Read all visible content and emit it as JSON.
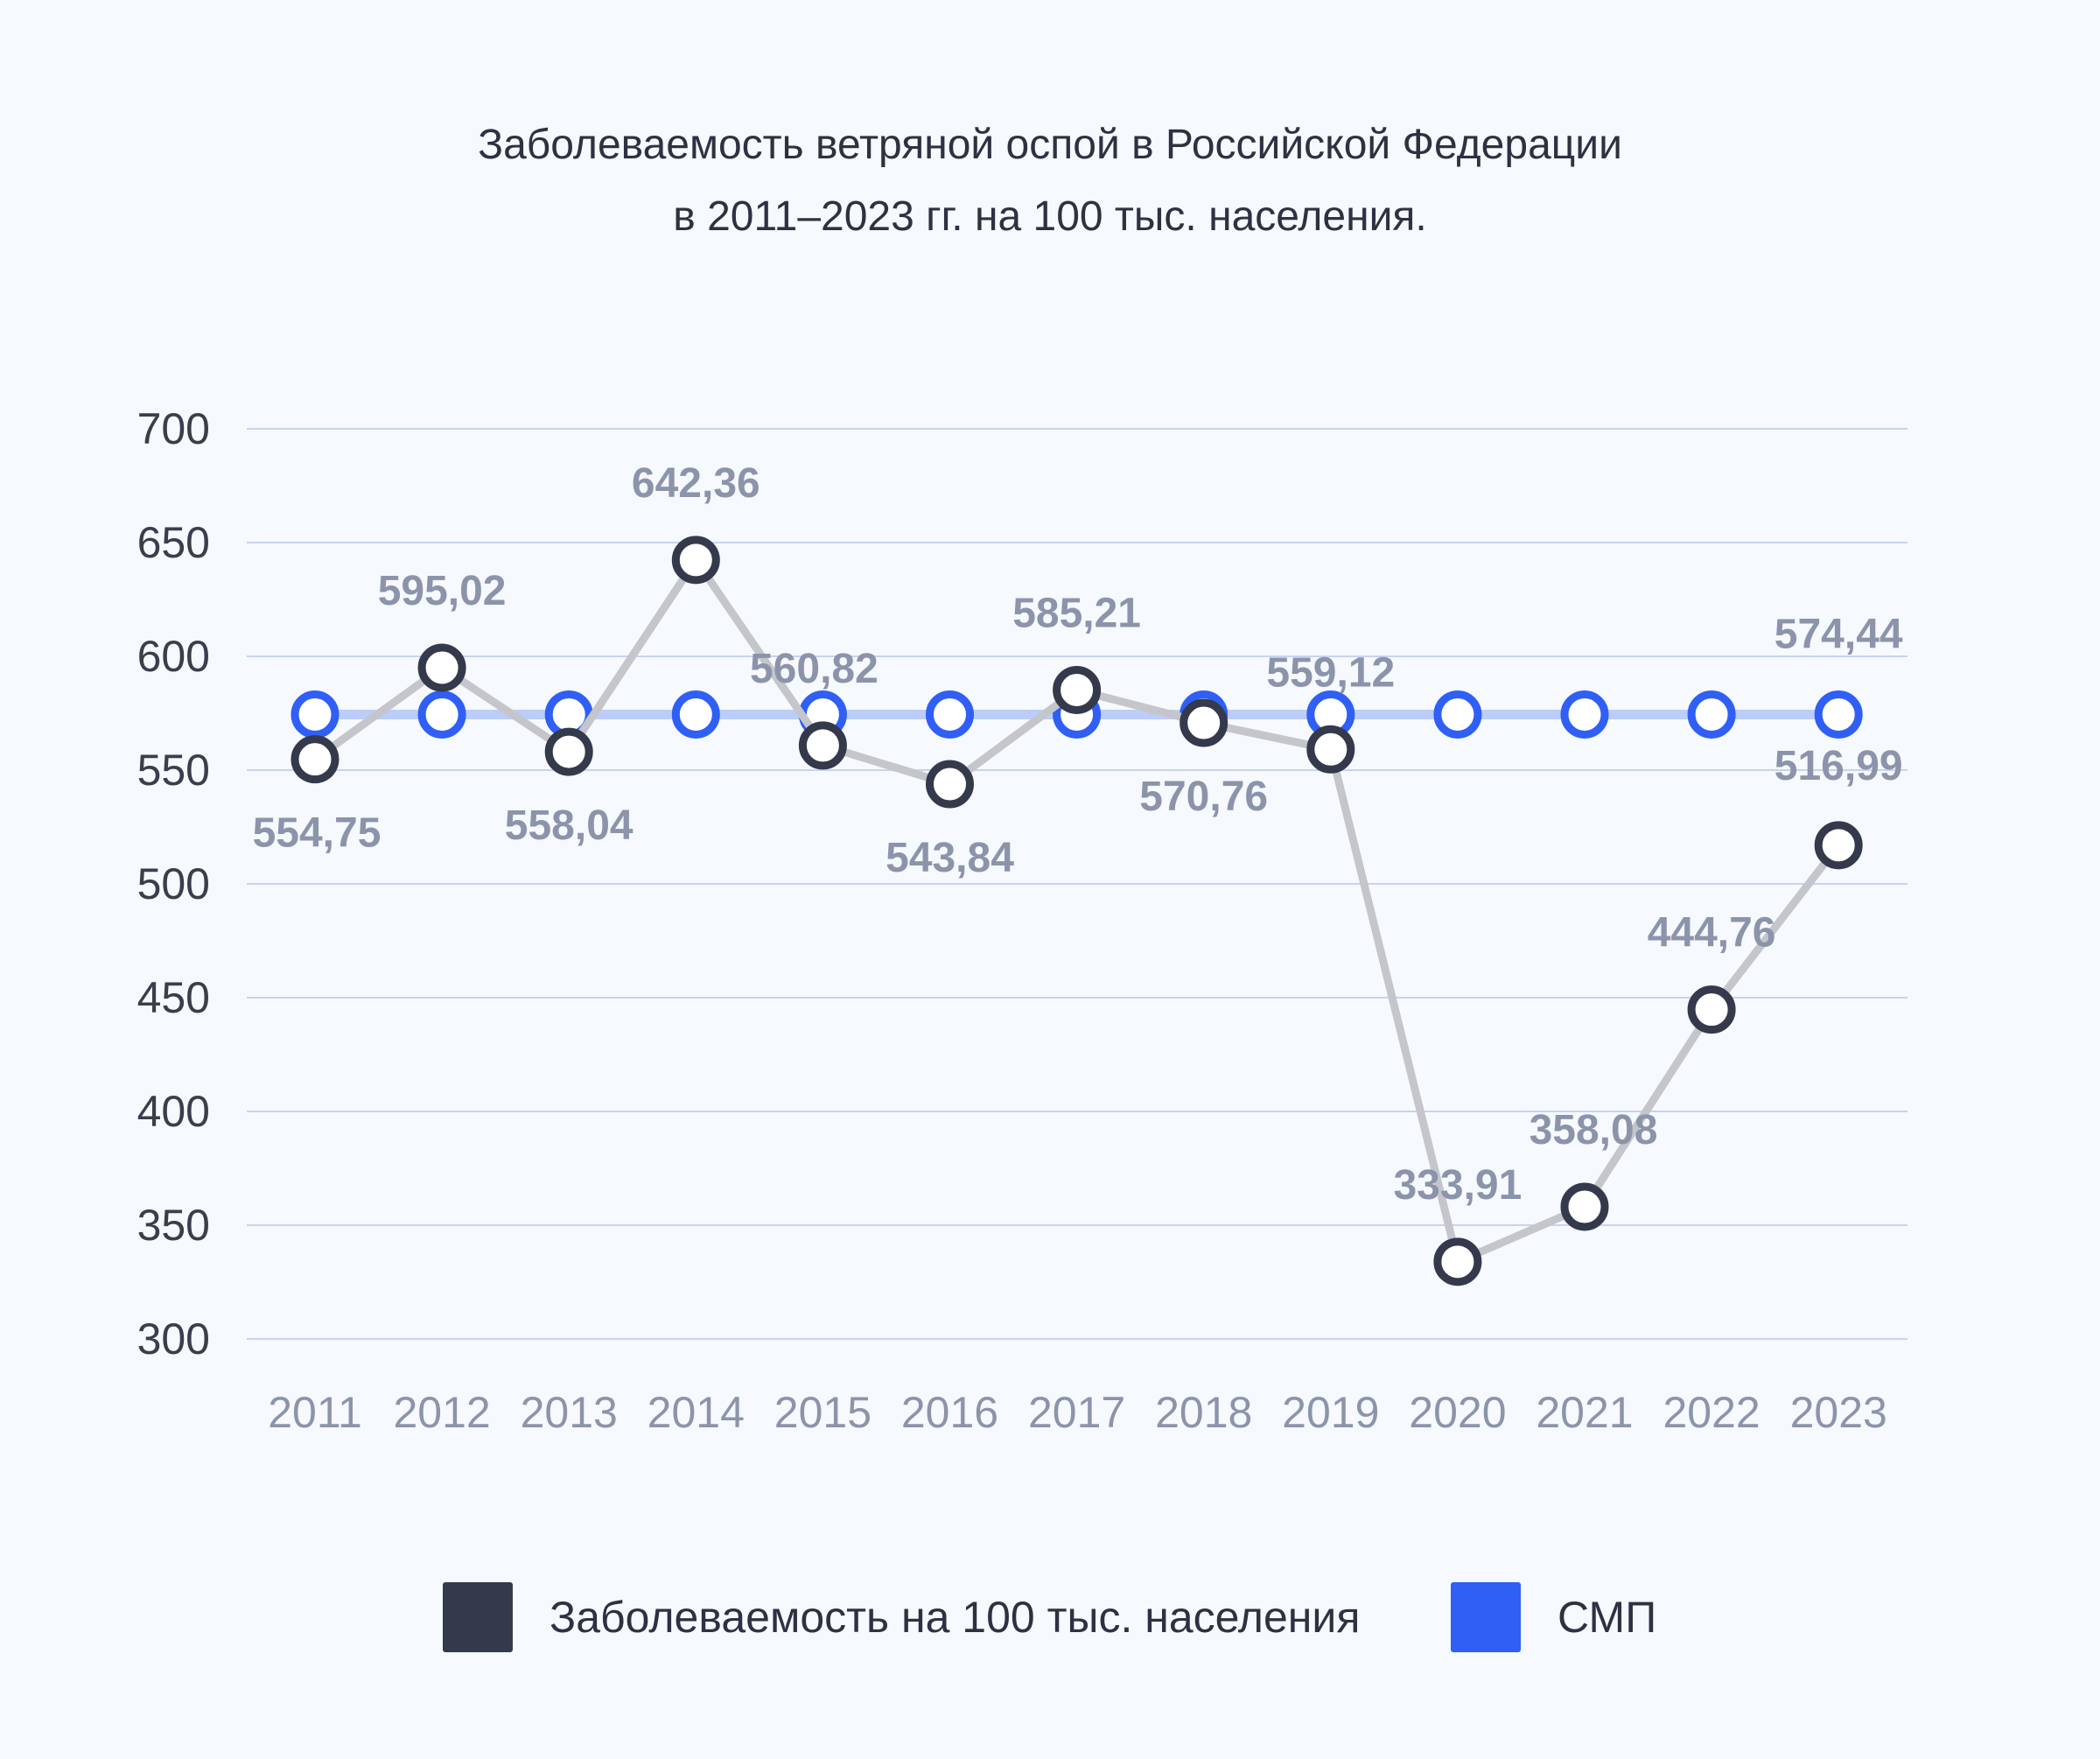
{
  "title": {
    "line1": "Заболеваемость ветряной оспой в Российской Федерации",
    "line2": "в 2011–2023 гг. на 100 тыс. населения."
  },
  "legend": {
    "incidence_label": "Заболеваемость на 100 тыс. населения",
    "smp_label": "СМП"
  },
  "colors": {
    "background": "#f6f9fd",
    "incidence_marker": "#343a4b",
    "incidence_line": "#c4c6cb",
    "smp_marker": "#2f5ff5",
    "smp_line": "#bccdf8",
    "gridline": "#c7d3f0",
    "axis_text": "#3a3e4c",
    "year_text": "#8c94ab",
    "value_label": "#8c94ab"
  },
  "chart_data": {
    "type": "line",
    "title": "Заболеваемость ветряной оспой в Российской Федерации в 2011–2023 гг. на 100 тыс. населения.",
    "categories": [
      "2011",
      "2012",
      "2013",
      "2014",
      "2015",
      "2016",
      "2017",
      "2018",
      "2019",
      "2020",
      "2021",
      "2022",
      "2023"
    ],
    "series": [
      {
        "name": "Заболеваемость на 100 тыс. населения",
        "values": [
          554.75,
          595.02,
          558.04,
          642.36,
          560.82,
          543.84,
          585.21,
          570.76,
          559.12,
          333.91,
          358.08,
          444.76,
          516.99
        ],
        "labels": [
          "554,75",
          "595,02",
          "558,04",
          "642,36",
          "560,82",
          "543,84",
          "585,21",
          "570,76",
          "559,12",
          "333,91",
          "358,08",
          "444,76",
          "516,99"
        ]
      },
      {
        "name": "СМП",
        "values": [
          574.44,
          574.44,
          574.44,
          574.44,
          574.44,
          574.44,
          574.44,
          574.44,
          574.44,
          574.44,
          574.44,
          574.44,
          574.44
        ],
        "labels": [
          "",
          "",
          "",
          "",
          "",
          "",
          "",
          "",
          "",
          "",
          "",
          "",
          "574,44"
        ]
      }
    ],
    "yticks": [
      "300",
      "350",
      "400",
      "450",
      "500",
      "550",
      "600",
      "650",
      "700"
    ],
    "ylim": [
      300,
      700
    ],
    "grid": true,
    "legend_position": "bottom"
  }
}
